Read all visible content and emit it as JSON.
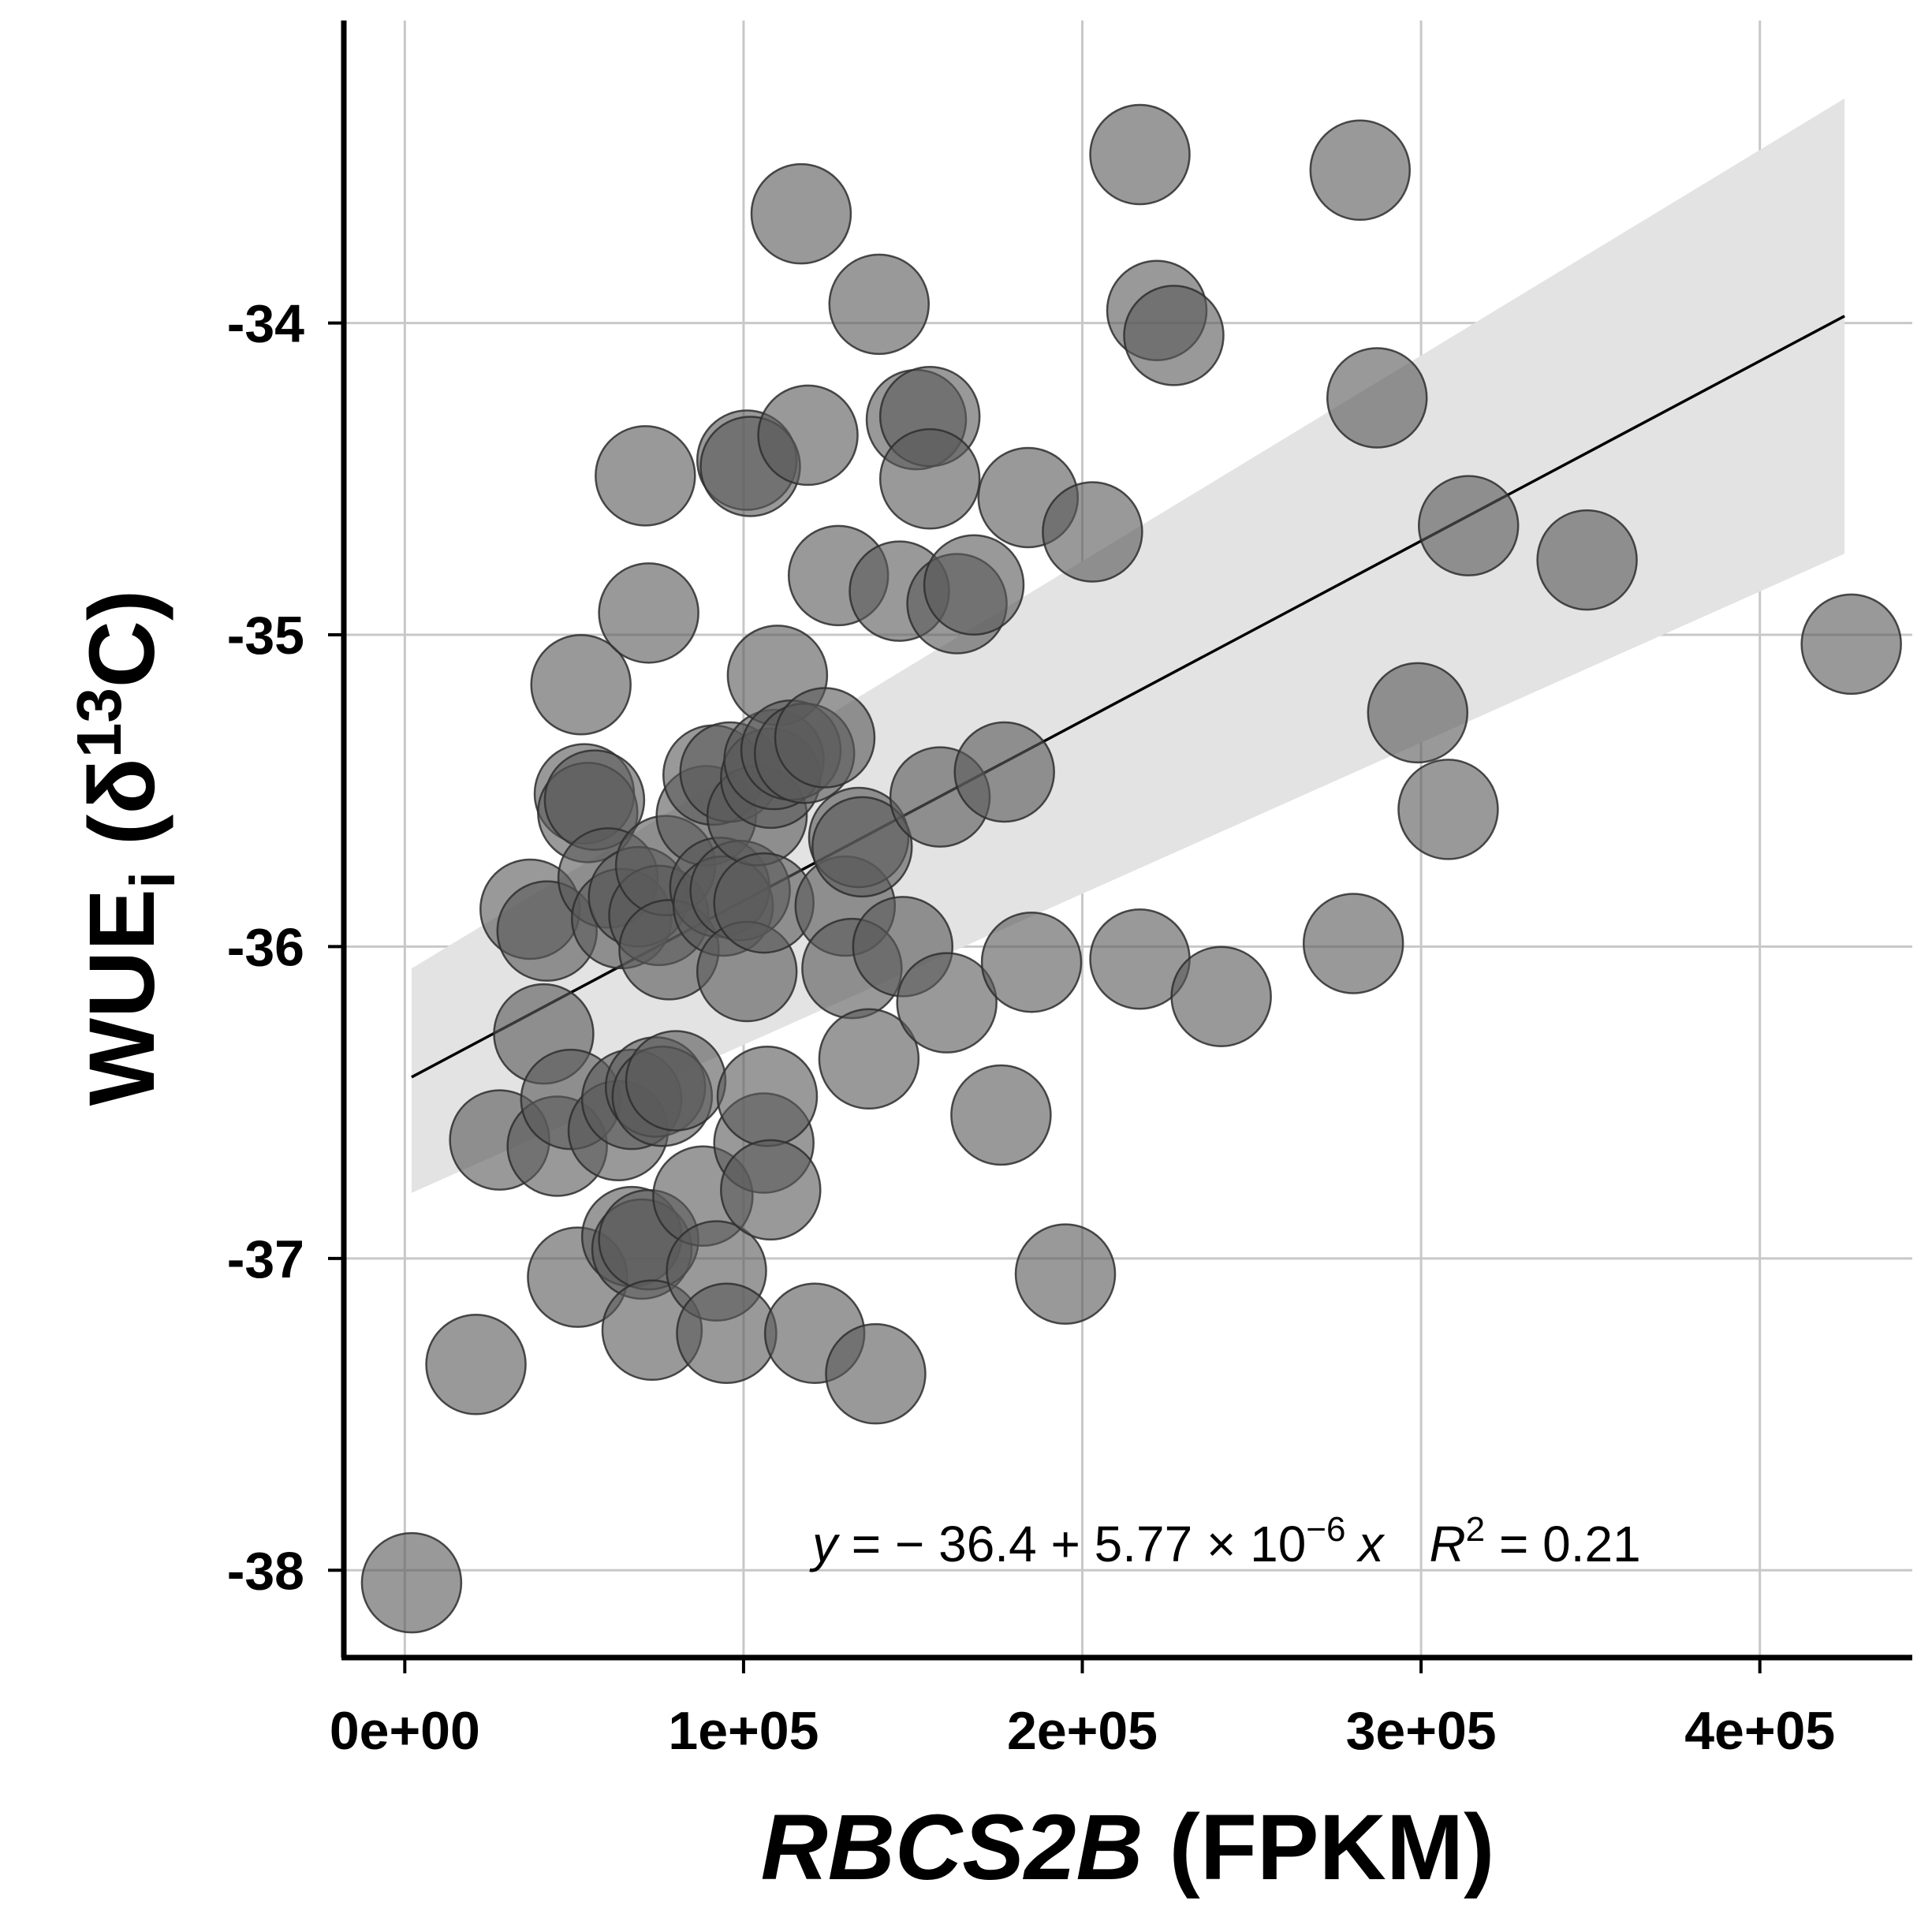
{
  "chart_data": {
    "type": "scatter",
    "xlabel": {
      "italic": "RBCS2B",
      "rest": " (FPKM)"
    },
    "ylabel": {
      "main": "WUE",
      "sub": "i",
      "open": " (δ",
      "sup": "13",
      "close": "C)"
    },
    "xlim": [
      -18000,
      445000
    ],
    "ylim": [
      -38.28,
      -33.03
    ],
    "x_ticks": [
      0,
      100000,
      200000,
      300000,
      400000
    ],
    "x_tick_labels": [
      "0e+00",
      "1e+05",
      "2e+05",
      "3e+05",
      "4e+05"
    ],
    "y_ticks": [
      -38,
      -37,
      -36,
      -35,
      -34
    ],
    "y_tick_labels": [
      "-38",
      "-37",
      "-36",
      "-35",
      "-34"
    ],
    "grid": true,
    "regression": {
      "intercept": -36.43,
      "slope": 5.77e-06,
      "x_range": [
        2000,
        425000
      ],
      "ci_lower": [
        -36.79,
        -34.74
      ],
      "ci_upper": [
        -36.07,
        -33.28
      ]
    },
    "equation": {
      "y": "y",
      "body": " = − 36.4 + 5.77 × 10",
      "exp": "−6",
      "x": "x",
      "r": "R",
      "r_exp": "2",
      "r_value": " = 0.21"
    },
    "point_color": "#5a5a5a",
    "points": [
      [
        2000,
        -38.04
      ],
      [
        21000,
        -37.34
      ],
      [
        28000,
        -36.62
      ],
      [
        37000,
        -35.88
      ],
      [
        41000,
        -36.28
      ],
      [
        42000,
        -35.95
      ],
      [
        45000,
        -36.64
      ],
      [
        49000,
        -36.49
      ],
      [
        51000,
        -37.06
      ],
      [
        52000,
        -35.16
      ],
      [
        53000,
        -35.51
      ],
      [
        54000,
        -35.57
      ],
      [
        56000,
        -35.53
      ],
      [
        60000,
        -35.78
      ],
      [
        63000,
        -36.59
      ],
      [
        64000,
        -35.91
      ],
      [
        67000,
        -36.93
      ],
      [
        67000,
        -36.49
      ],
      [
        69000,
        -35.84
      ],
      [
        70000,
        -36.97
      ],
      [
        71000,
        -34.49
      ],
      [
        72000,
        -34.93
      ],
      [
        72000,
        -36.94
      ],
      [
        73000,
        -37.23
      ],
      [
        74000,
        -36.45
      ],
      [
        75000,
        -35.9
      ],
      [
        76000,
        -36.48
      ],
      [
        77000,
        -35.74
      ],
      [
        78000,
        -36.01
      ],
      [
        80000,
        -36.43
      ],
      [
        88000,
        -36.8
      ],
      [
        89000,
        -35.58
      ],
      [
        91000,
        -35.45
      ],
      [
        92000,
        -37.04
      ],
      [
        93000,
        -35.81
      ],
      [
        94000,
        -35.87
      ],
      [
        95000,
        -37.24
      ],
      [
        96000,
        -35.44
      ],
      [
        99000,
        -35.82
      ],
      [
        101000,
        -36.08
      ],
      [
        101000,
        -34.44
      ],
      [
        102000,
        -34.46
      ],
      [
        104000,
        -35.58
      ],
      [
        106000,
        -35.86
      ],
      [
        106000,
        -36.63
      ],
      [
        107000,
        -36.48
      ],
      [
        108000,
        -36.78
      ],
      [
        108000,
        -35.46
      ],
      [
        109000,
        -35.4
      ],
      [
        110000,
        -35.13
      ],
      [
        114000,
        -35.37
      ],
      [
        117000,
        -33.65
      ],
      [
        118000,
        -35.38
      ],
      [
        119000,
        -34.36
      ],
      [
        121000,
        -37.24
      ],
      [
        124000,
        -35.33
      ],
      [
        128000,
        -34.81
      ],
      [
        130000,
        -35.87
      ],
      [
        132000,
        -36.07
      ],
      [
        134000,
        -35.65
      ],
      [
        135000,
        -35.68
      ],
      [
        137000,
        -36.36
      ],
      [
        139000,
        -37.37
      ],
      [
        140000,
        -33.94
      ],
      [
        146000,
        -34.86
      ],
      [
        147000,
        -36.0
      ],
      [
        151000,
        -34.31
      ],
      [
        155000,
        -34.3
      ],
      [
        155000,
        -34.5
      ],
      [
        158000,
        -35.52
      ],
      [
        160000,
        -36.18
      ],
      [
        163000,
        -34.9
      ],
      [
        168000,
        -34.84
      ],
      [
        176000,
        -36.54
      ],
      [
        177000,
        -35.44
      ],
      [
        184000,
        -34.56
      ],
      [
        185000,
        -36.05
      ],
      [
        195000,
        -37.05
      ],
      [
        203000,
        -34.67
      ],
      [
        217000,
        -33.46
      ],
      [
        217000,
        -36.04
      ],
      [
        222000,
        -33.96
      ],
      [
        227000,
        -34.04
      ],
      [
        241000,
        -36.16
      ],
      [
        280000,
        -35.99
      ],
      [
        282000,
        -33.51
      ],
      [
        287000,
        -34.24
      ],
      [
        299000,
        -35.25
      ],
      [
        308000,
        -35.56
      ],
      [
        314000,
        -34.65
      ],
      [
        349000,
        -34.76
      ],
      [
        427000,
        -35.03
      ]
    ]
  }
}
